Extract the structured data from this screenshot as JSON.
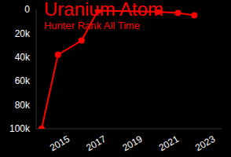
{
  "chart_data": {
    "type": "line",
    "title": "Uranium Atom",
    "subtitle": "Hunter Rank All Time",
    "x": [
      2013.6,
      2014.5,
      2015.8,
      2016.7,
      2020.0,
      2021.1,
      2022.0
    ],
    "series": [
      {
        "name": "Hunter Rank",
        "color": "#ff0000",
        "values": [
          100000,
          38000,
          26000,
          1000,
          2000,
          3000,
          5000
        ]
      }
    ],
    "xlim": [
      2013.3,
      2023.5
    ],
    "xticks": [
      2015,
      2017,
      2019,
      2021,
      2023
    ],
    "ylim": [
      0,
      100000
    ],
    "yticks": [
      0,
      {
        "value": 20000,
        "label": "20k"
      },
      {
        "value": 40000,
        "label": "40k"
      },
      {
        "value": 60000,
        "label": "60k"
      },
      {
        "value": 80000,
        "label": "80k"
      },
      {
        "value": 100000,
        "label": "100k"
      }
    ],
    "grid": false,
    "marker": "circle"
  }
}
